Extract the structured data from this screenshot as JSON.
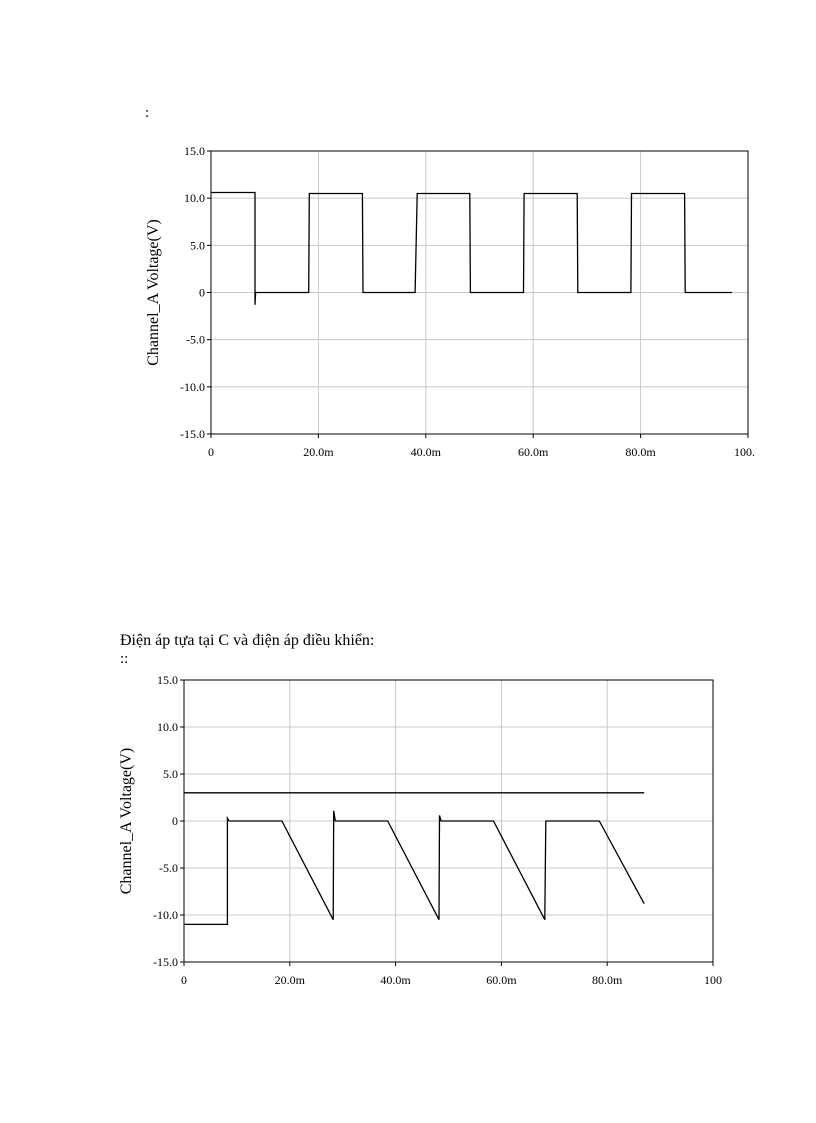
{
  "notes": {
    "top_marker": ":",
    "section_heading": "Điện áp tựa tại C và điện áp điều khiển:",
    "section_marker": "::"
  },
  "chart_data": [
    {
      "type": "line",
      "title": "",
      "xlabel": "",
      "ylabel": "Channel_A Voltage(V)",
      "xlim": [
        0,
        100
      ],
      "ylim": [
        -15,
        15
      ],
      "grid": true,
      "x_tick_labels": [
        "0",
        "20.0m",
        "40.0m",
        "60.0m",
        "80.0m",
        "100."
      ],
      "y_tick_labels": [
        "15.0",
        "10.0",
        "5.0",
        "0",
        "-5.0",
        "-10.0",
        "-15.0"
      ],
      "series": [
        {
          "points": [
            [
              0,
              10.6
            ],
            [
              8.2,
              10.6
            ],
            [
              8.2,
              -1.3
            ],
            [
              8.3,
              0
            ],
            [
              18.2,
              0
            ],
            [
              18.3,
              10.5
            ],
            [
              28.2,
              10.5
            ],
            [
              28.3,
              0
            ],
            [
              38,
              0
            ],
            [
              38.4,
              10.5
            ],
            [
              48.2,
              10.5
            ],
            [
              48.3,
              0
            ],
            [
              58.2,
              0
            ],
            [
              58.3,
              10.5
            ],
            [
              68.2,
              10.5
            ],
            [
              68.3,
              0
            ],
            [
              78.2,
              0
            ],
            [
              78.3,
              10.5
            ],
            [
              88.2,
              10.5
            ],
            [
              88.3,
              0
            ],
            [
              97,
              0
            ]
          ]
        }
      ]
    },
    {
      "type": "line",
      "title": "",
      "xlabel": "",
      "ylabel": "Channel_A Voltage(V)",
      "xlim": [
        0,
        100
      ],
      "ylim": [
        -15,
        15
      ],
      "grid": true,
      "x_tick_labels": [
        "0",
        "20.0m",
        "40.0m",
        "60.0m",
        "80.0m",
        "100"
      ],
      "y_tick_labels": [
        "15.0",
        "10.0",
        "5.0",
        "0",
        "-5.0",
        "-10.0",
        "-15.0"
      ],
      "series": [
        {
          "points": [
            [
              0,
              3
            ],
            [
              87,
              3
            ]
          ]
        },
        {
          "points": [
            [
              0,
              -11
            ],
            [
              8.2,
              -11
            ],
            [
              8.2,
              0.3
            ],
            [
              8.5,
              0
            ],
            [
              18.5,
              0
            ],
            [
              28.2,
              -10.5
            ],
            [
              28.3,
              1.1
            ],
            [
              28.6,
              0
            ],
            [
              38.5,
              0
            ],
            [
              48.2,
              -10.5
            ],
            [
              48.3,
              0.6
            ],
            [
              48.6,
              0
            ],
            [
              58.5,
              0
            ],
            [
              68.2,
              -10.5
            ],
            [
              68.4,
              0
            ],
            [
              78.5,
              0
            ],
            [
              87,
              -8.8
            ]
          ]
        }
      ]
    }
  ]
}
